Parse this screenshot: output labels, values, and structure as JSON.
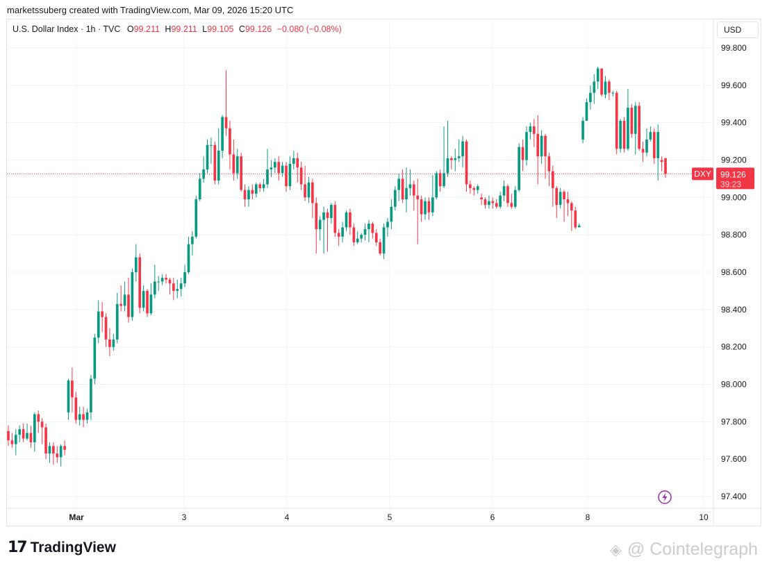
{
  "attribution": "marketssuberg created with TradingView.com, Mar 09, 2026 15:20 UTC",
  "legend": {
    "name": "U.S. Dollar Index · 1h · TVC",
    "o_label": "O",
    "o": "99.211",
    "h_label": "H",
    "h": "99.211",
    "l_label": "L",
    "l": "99.105",
    "c_label": "C",
    "c": "99.126",
    "change": "−0.080 (−0.08%)"
  },
  "currency_button": "USD",
  "footer": {
    "logo_mark": "17",
    "logo_text": "TradingView"
  },
  "watermark": {
    "icon": "cube-icon",
    "text": "@ Cointelegraph"
  },
  "colors": {
    "up": "#089981",
    "down": "#f23645",
    "grid": "#f0f3fa",
    "accent": "#9c27b0"
  },
  "chart_data": {
    "type": "candlestick",
    "symbol": "DXY",
    "last_price": "99.126",
    "countdown": "39:23",
    "y_ticks": [
      "99.800",
      "99.600",
      "99.400",
      "99.200",
      "99.000",
      "98.800",
      "98.600",
      "98.400",
      "98.200",
      "98.000",
      "97.800",
      "97.600",
      "97.400"
    ],
    "x_ticks": [
      "Mar",
      "3",
      "4",
      "5",
      "6",
      "8",
      "10"
    ],
    "ylim": [
      97.34,
      99.86
    ],
    "grid": true,
    "candles": [
      [
        97.75,
        97.7,
        97.78,
        97.67
      ],
      [
        97.7,
        97.68,
        97.74,
        97.66
      ],
      [
        97.68,
        97.73,
        97.76,
        97.62
      ],
      [
        97.73,
        97.76,
        97.78,
        97.69
      ],
      [
        97.76,
        97.71,
        97.79,
        97.69
      ],
      [
        97.71,
        97.74,
        97.79,
        97.7
      ],
      [
        97.74,
        97.69,
        97.78,
        97.66
      ],
      [
        97.69,
        97.84,
        97.85,
        97.64
      ],
      [
        97.84,
        97.8,
        97.86,
        97.74
      ],
      [
        97.8,
        97.77,
        97.82,
        97.68
      ],
      [
        97.77,
        97.63,
        97.79,
        97.6
      ],
      [
        97.63,
        97.67,
        97.69,
        97.58
      ],
      [
        97.67,
        97.63,
        97.69,
        97.57
      ],
      [
        97.63,
        97.61,
        97.67,
        97.58
      ],
      [
        97.61,
        97.67,
        97.68,
        97.56
      ],
      [
        97.67,
        97.65,
        97.7,
        97.62
      ],
      [
        97.85,
        98.02,
        98.03,
        97.81
      ],
      [
        98.02,
        97.93,
        98.09,
        97.85
      ],
      [
        97.93,
        97.81,
        97.96,
        97.79
      ],
      [
        97.81,
        97.84,
        97.88,
        97.78
      ],
      [
        97.84,
        97.81,
        97.88,
        97.77
      ],
      [
        97.81,
        97.85,
        97.87,
        97.79
      ],
      [
        97.85,
        98.03,
        98.05,
        97.81
      ],
      [
        98.03,
        98.25,
        98.27,
        98.0
      ],
      [
        98.25,
        98.39,
        98.45,
        98.22
      ],
      [
        98.39,
        98.36,
        98.44,
        98.28
      ],
      [
        98.36,
        98.24,
        98.38,
        98.2
      ],
      [
        98.24,
        98.2,
        98.3,
        98.15
      ],
      [
        98.2,
        98.24,
        98.27,
        98.18
      ],
      [
        98.24,
        98.43,
        98.49,
        98.22
      ],
      [
        98.43,
        98.42,
        98.53,
        98.39
      ],
      [
        98.42,
        98.48,
        98.55,
        98.39
      ],
      [
        98.48,
        98.36,
        98.57,
        98.33
      ],
      [
        98.36,
        98.6,
        98.62,
        98.34
      ],
      [
        98.6,
        98.68,
        98.75,
        98.55
      ],
      [
        98.68,
        98.41,
        98.7,
        98.38
      ],
      [
        98.41,
        98.5,
        98.53,
        98.39
      ],
      [
        98.5,
        98.38,
        98.51,
        98.36
      ],
      [
        98.38,
        98.48,
        98.54,
        98.37
      ],
      [
        98.48,
        98.55,
        98.64,
        98.46
      ],
      [
        98.55,
        98.55,
        98.58,
        98.5
      ],
      [
        98.55,
        98.57,
        98.59,
        98.53
      ],
      [
        98.57,
        98.56,
        98.59,
        98.54
      ],
      [
        98.56,
        98.54,
        98.57,
        98.48
      ],
      [
        98.54,
        98.5,
        98.57,
        98.45
      ],
      [
        98.5,
        98.51,
        98.56,
        98.46
      ],
      [
        98.51,
        98.54,
        98.57,
        98.47
      ],
      [
        98.54,
        98.6,
        98.64,
        98.52
      ],
      [
        98.6,
        98.75,
        98.79,
        98.59
      ],
      [
        98.75,
        98.79,
        98.82,
        98.69
      ],
      [
        98.79,
        98.99,
        99.01,
        98.78
      ],
      [
        98.99,
        99.1,
        99.13,
        98.98
      ],
      [
        99.1,
        99.15,
        99.22,
        99.08
      ],
      [
        99.15,
        99.28,
        99.31,
        99.13
      ],
      [
        99.28,
        99.28,
        99.32,
        99.18
      ],
      [
        99.28,
        99.09,
        99.3,
        99.07
      ],
      [
        99.09,
        99.25,
        99.37,
        99.07
      ],
      [
        99.25,
        99.43,
        99.44,
        99.21
      ],
      [
        99.43,
        99.37,
        99.68,
        99.33
      ],
      [
        99.37,
        99.23,
        99.41,
        99.15
      ],
      [
        99.23,
        99.13,
        99.31,
        99.09
      ],
      [
        99.13,
        99.22,
        99.26,
        99.1
      ],
      [
        99.22,
        99.04,
        99.24,
        99.03
      ],
      [
        99.04,
        98.99,
        99.07,
        98.95
      ],
      [
        98.99,
        99.04,
        99.06,
        98.95
      ],
      [
        99.04,
        99.02,
        99.07,
        98.99
      ],
      [
        99.02,
        99.07,
        99.08,
        99.0
      ],
      [
        99.07,
        99.05,
        99.08,
        99.03
      ],
      [
        99.05,
        99.07,
        99.1,
        99.03
      ],
      [
        99.07,
        99.15,
        99.26,
        99.05
      ],
      [
        99.15,
        99.16,
        99.2,
        99.11
      ],
      [
        99.16,
        99.19,
        99.21,
        99.13
      ],
      [
        99.19,
        99.13,
        99.22,
        99.09
      ],
      [
        99.13,
        99.17,
        99.19,
        99.11
      ],
      [
        99.17,
        99.06,
        99.19,
        99.03
      ],
      [
        99.06,
        99.18,
        99.22,
        99.04
      ],
      [
        99.18,
        99.21,
        99.25,
        99.15
      ],
      [
        99.21,
        99.16,
        99.24,
        99.08
      ],
      [
        99.16,
        99.07,
        99.19,
        99.04
      ],
      [
        99.07,
        99.0,
        99.17,
        98.98
      ],
      [
        99.0,
        99.08,
        99.11,
        98.97
      ],
      [
        99.08,
        98.97,
        99.1,
        98.89
      ],
      [
        98.97,
        98.83,
        99.0,
        98.7
      ],
      [
        98.83,
        98.88,
        98.9,
        98.77
      ],
      [
        98.88,
        98.92,
        98.95,
        98.7
      ],
      [
        98.92,
        98.89,
        98.94,
        98.71
      ],
      [
        98.89,
        98.96,
        98.97,
        98.86
      ],
      [
        98.96,
        98.81,
        98.98,
        98.79
      ],
      [
        98.81,
        98.79,
        98.83,
        98.74
      ],
      [
        98.79,
        98.84,
        98.87,
        98.76
      ],
      [
        98.84,
        98.92,
        98.93,
        98.82
      ],
      [
        98.92,
        98.84,
        98.94,
        98.8
      ],
      [
        98.84,
        98.76,
        98.86,
        98.74
      ],
      [
        98.76,
        98.78,
        98.82,
        98.75
      ],
      [
        98.78,
        98.8,
        98.81,
        98.76
      ],
      [
        98.8,
        98.83,
        98.86,
        98.77
      ],
      [
        98.83,
        98.86,
        98.88,
        98.76
      ],
      [
        98.86,
        98.81,
        98.87,
        98.78
      ],
      [
        98.81,
        98.76,
        98.83,
        98.74
      ],
      [
        98.76,
        98.7,
        98.78,
        98.69
      ],
      [
        98.7,
        98.84,
        98.86,
        98.67
      ],
      [
        98.84,
        98.87,
        98.89,
        98.79
      ],
      [
        98.87,
        98.95,
        98.99,
        98.83
      ],
      [
        98.95,
        99.04,
        99.06,
        98.93
      ],
      [
        99.04,
        99.1,
        99.13,
        98.98
      ],
      [
        99.1,
        98.99,
        99.15,
        98.97
      ],
      [
        98.99,
        99.05,
        99.16,
        98.92
      ],
      [
        99.05,
        99.07,
        99.15,
        99.01
      ],
      [
        99.07,
        99.01,
        99.09,
        98.93
      ],
      [
        99.01,
        98.99,
        99.1,
        98.75
      ],
      [
        98.99,
        98.91,
        99.01,
        98.87
      ],
      [
        98.91,
        98.98,
        99.0,
        98.88
      ],
      [
        98.98,
        98.92,
        99.0,
        98.88
      ],
      [
        98.92,
        99.0,
        99.12,
        98.9
      ],
      [
        99.0,
        99.13,
        99.14,
        98.99
      ],
      [
        99.13,
        99.06,
        99.15,
        99.03
      ],
      [
        99.06,
        99.13,
        99.38,
        99.05
      ],
      [
        99.13,
        99.21,
        99.41,
        99.11
      ],
      [
        99.21,
        99.2,
        99.22,
        99.15
      ],
      [
        99.2,
        99.21,
        99.26,
        99.14
      ],
      [
        99.21,
        99.22,
        99.31,
        99.19
      ],
      [
        99.22,
        99.3,
        99.33,
        99.16
      ],
      [
        99.3,
        99.07,
        99.31,
        99.03
      ],
      [
        99.07,
        99.05,
        99.09,
        99.02
      ],
      [
        99.05,
        99.04,
        99.06,
        99.01
      ],
      [
        99.04,
        99.06,
        99.07,
        99.02
      ],
      [
        99.0,
        98.99,
        99.02,
        98.96
      ],
      [
        98.99,
        98.96,
        99.0,
        98.94
      ],
      [
        98.96,
        98.98,
        99.01,
        98.94
      ],
      [
        98.98,
        98.97,
        99.0,
        98.94
      ],
      [
        98.97,
        98.95,
        98.99,
        98.94
      ],
      [
        98.95,
        99.01,
        99.03,
        98.94
      ],
      [
        99.01,
        99.06,
        99.09,
        98.98
      ],
      [
        99.06,
        98.97,
        99.07,
        98.95
      ],
      [
        98.97,
        98.95,
        99.02,
        98.94
      ],
      [
        98.95,
        99.04,
        99.06,
        98.94
      ],
      [
        99.04,
        99.27,
        99.29,
        99.03
      ],
      [
        99.27,
        99.2,
        99.31,
        99.14
      ],
      [
        99.2,
        99.35,
        99.38,
        99.17
      ],
      [
        99.35,
        99.38,
        99.4,
        99.31
      ],
      [
        99.38,
        99.34,
        99.42,
        99.27
      ],
      [
        99.34,
        99.22,
        99.44,
        99.07
      ],
      [
        99.22,
        99.33,
        99.36,
        99.18
      ],
      [
        99.33,
        99.22,
        99.34,
        99.1
      ],
      [
        99.22,
        99.14,
        99.24,
        99.06
      ],
      [
        99.14,
        99.05,
        99.17,
        98.95
      ],
      [
        99.05,
        98.96,
        99.06,
        98.89
      ],
      [
        98.96,
        99.03,
        99.05,
        98.94
      ],
      [
        99.03,
        98.99,
        99.04,
        98.87
      ],
      [
        98.99,
        98.97,
        99.03,
        98.9
      ],
      [
        98.97,
        98.93,
        98.98,
        98.82
      ],
      [
        98.93,
        98.84,
        98.95,
        98.83
      ],
      [
        98.84,
        98.85,
        98.86,
        98.84
      ],
      [
        99.31,
        99.41,
        99.43,
        99.29
      ],
      [
        99.41,
        99.51,
        99.53,
        99.45
      ],
      [
        99.51,
        99.56,
        99.6,
        99.47
      ],
      [
        99.56,
        99.62,
        99.66,
        99.5
      ],
      [
        99.62,
        99.69,
        99.7,
        99.58
      ],
      [
        99.69,
        99.55,
        99.69,
        99.54
      ],
      [
        99.55,
        99.62,
        99.65,
        99.53
      ],
      [
        99.62,
        99.56,
        99.63,
        99.52
      ],
      [
        99.56,
        99.56,
        99.57,
        99.54
      ],
      [
        99.56,
        99.26,
        99.57,
        99.23
      ],
      [
        99.26,
        99.41,
        99.42,
        99.24
      ],
      [
        99.41,
        99.26,
        99.43,
        99.24
      ],
      [
        99.26,
        99.48,
        99.58,
        99.25
      ],
      [
        99.48,
        99.34,
        99.5,
        99.32
      ],
      [
        99.34,
        99.49,
        99.51,
        99.23
      ],
      [
        99.49,
        99.26,
        99.51,
        99.25
      ],
      [
        99.26,
        99.24,
        99.3,
        99.19
      ],
      [
        99.24,
        99.31,
        99.37,
        99.22
      ],
      [
        99.31,
        99.35,
        99.38,
        99.3
      ],
      [
        99.35,
        99.21,
        99.37,
        99.18
      ],
      [
        99.21,
        99.35,
        99.39,
        99.09
      ],
      [
        99.2,
        99.19,
        99.22,
        99.14
      ],
      [
        99.21,
        99.126,
        99.211,
        99.105
      ]
    ]
  }
}
